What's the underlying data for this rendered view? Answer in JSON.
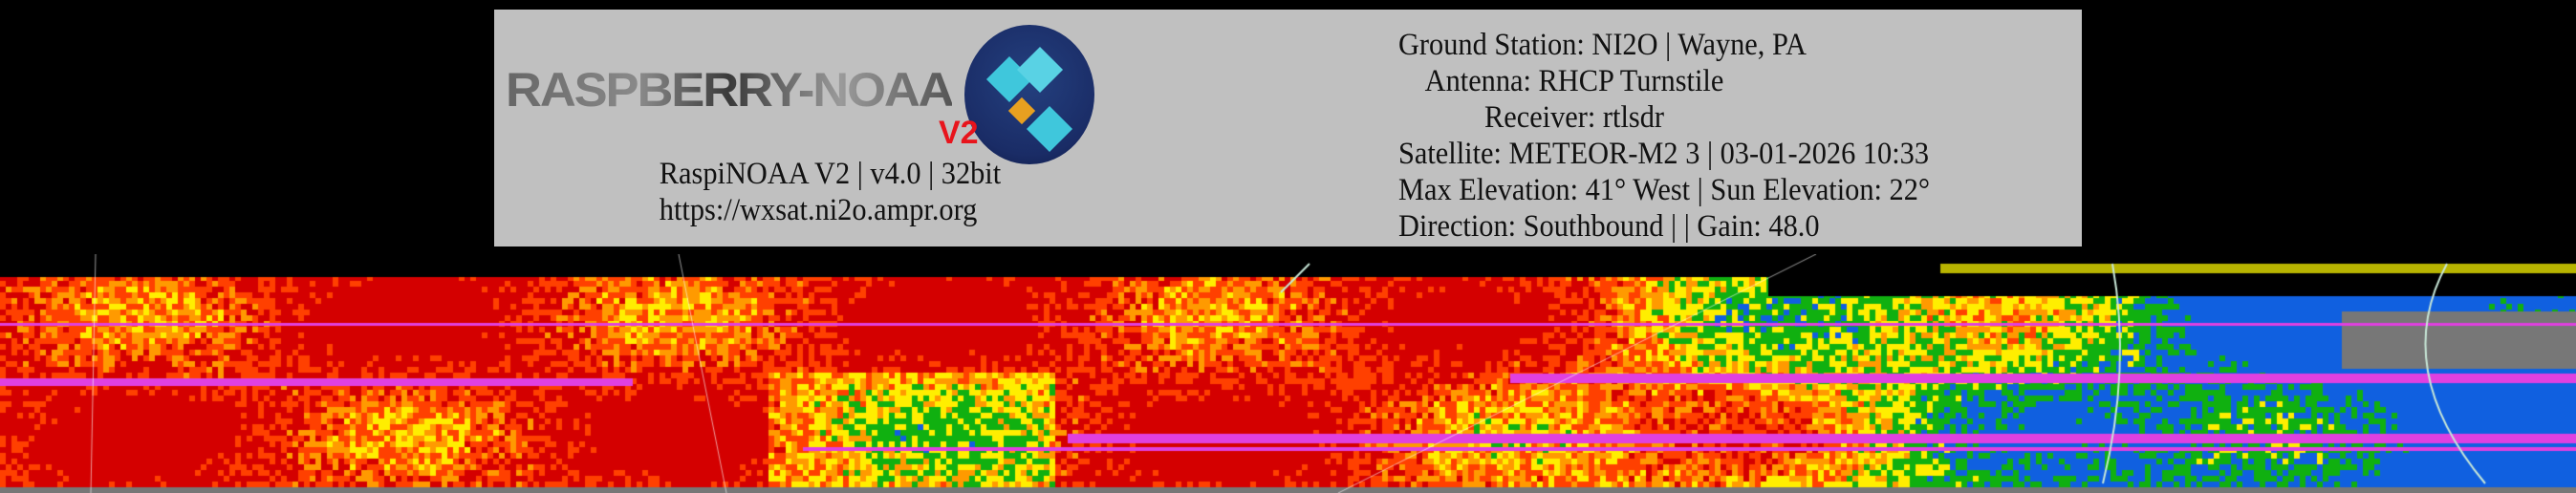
{
  "logo": {
    "text": "RASPBERRY-NOAA",
    "badge": "V2"
  },
  "left_info": [
    "RaspiNOAA V2 | v4.0 | 32bit",
    "https://wxsat.ni2o.ampr.org"
  ],
  "right_info": [
    "Ground Station: NI2O | Wayne, PA",
    "Antenna: RHCP Turnstile",
    "Receiver: rtlsdr",
    "Satellite: METEOR-M2 3 | 03-01-2026 10:33",
    "Max Elevation: 41° West | Sun Elevation: 22°",
    "Direction: Southbound | | Gain: 48.0"
  ],
  "colors": {
    "panel": "#c0c0c0",
    "logo_circle": "#1a2c66",
    "badge": "#e8141c",
    "palette": [
      "#d40000",
      "#ff4000",
      "#ff9a00",
      "#ffee00",
      "#10b010",
      "#1060e0",
      "#e040e0"
    ]
  }
}
